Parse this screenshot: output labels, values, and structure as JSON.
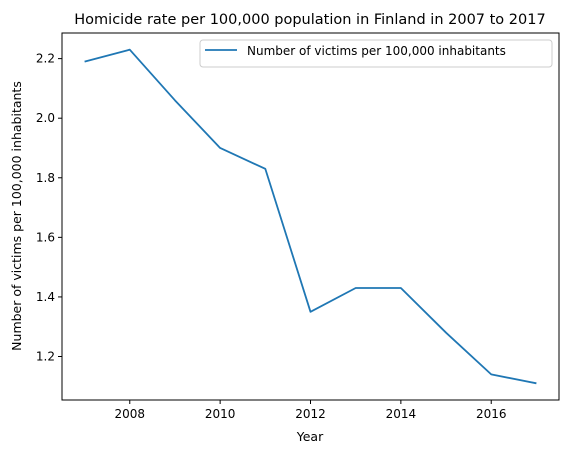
{
  "chart_data": {
    "type": "line",
    "title": "Homicide rate per 100,000 population in Finland in 2007 to 2017",
    "xlabel": "Year",
    "ylabel": "Number of victims per 100,000 inhabitants",
    "x": [
      2007,
      2008,
      2009,
      2010,
      2011,
      2012,
      2013,
      2014,
      2015,
      2016,
      2017
    ],
    "series": [
      {
        "name": "Number of victims per 100,000 inhabitants",
        "values": [
          2.19,
          2.23,
          2.06,
          1.9,
          1.83,
          1.35,
          1.43,
          1.43,
          1.28,
          1.14,
          1.11
        ],
        "color": "#1f77b4"
      }
    ],
    "xlim": [
      2006.5,
      2017.5
    ],
    "ylim": [
      1.054,
      2.286
    ],
    "xticks": [
      "2008",
      "2010",
      "2012",
      "2014",
      "2016"
    ],
    "yticks": [
      "1.2",
      "1.4",
      "1.6",
      "1.8",
      "2.0",
      "2.2"
    ],
    "grid": false,
    "legend_position": "top-right"
  }
}
